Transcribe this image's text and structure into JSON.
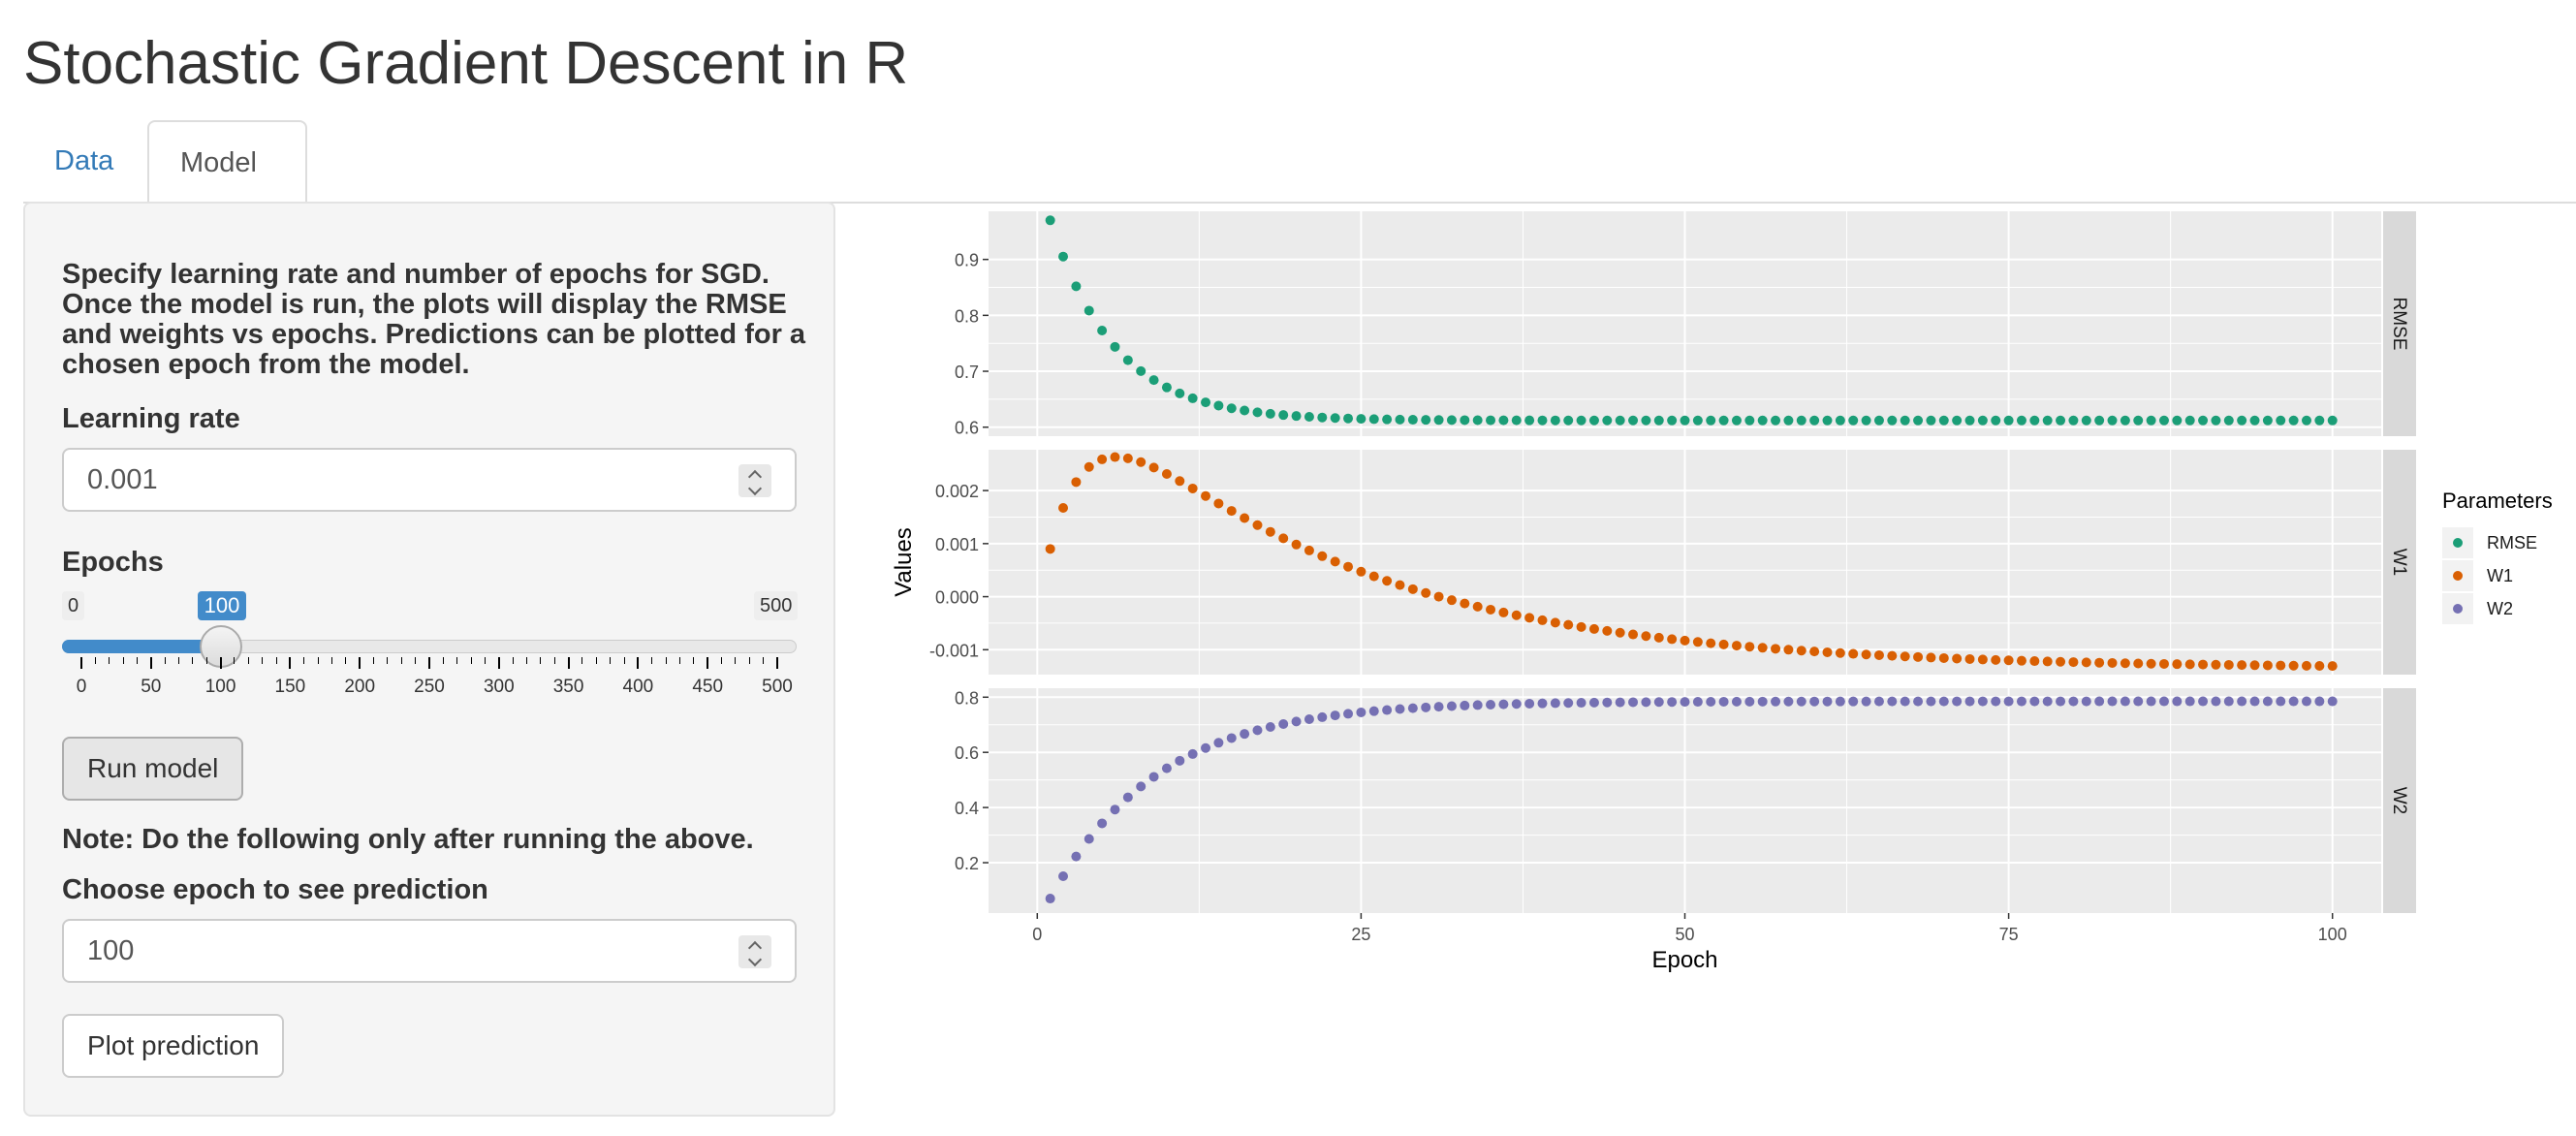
{
  "page": {
    "title": "Stochastic Gradient Descent in R"
  },
  "tabs": [
    {
      "label": "Data",
      "active": false
    },
    {
      "label": "Model",
      "active": true
    }
  ],
  "sidebar": {
    "description": "Specify learning rate and number of epochs for SGD. Once the model is run, the plots will display the RMSE and weights vs epochs. Predictions can be plotted for a chosen epoch from the model.",
    "learning_rate": {
      "label": "Learning rate",
      "value": "0.001"
    },
    "epochs": {
      "label": "Epochs",
      "min_label": "0",
      "max_label": "500",
      "value_label": "100",
      "value": 100,
      "min": 0,
      "max": 500,
      "ticks": [
        "0",
        "50",
        "100",
        "150",
        "200",
        "250",
        "300",
        "350",
        "400",
        "450",
        "500"
      ]
    },
    "run_button": "Run model",
    "note": "Note: Do the following only after running the above.",
    "prediction_epoch": {
      "label": "Choose epoch to see prediction",
      "value": "100"
    },
    "plot_button": "Plot prediction"
  },
  "colors": {
    "accent": "#428bca",
    "link": "#337ab7",
    "panel_bg": "#ebebeb",
    "strip_bg": "#d9d9d9",
    "rmse": "#1b9e77",
    "w1": "#d95f02",
    "w2": "#7570b3"
  },
  "chart_data": {
    "type": "scatter",
    "facets": [
      "RMSE",
      "W1",
      "W2"
    ],
    "xlabel": "Epoch",
    "ylabel": "Values",
    "xlim": [
      0,
      100
    ],
    "x_ticks": [
      "0",
      "25",
      "50",
      "75",
      "100"
    ],
    "legend": {
      "title": "Parameters",
      "placement": "right",
      "entries": [
        "RMSE",
        "W1",
        "W2"
      ]
    },
    "grid": true,
    "panels": [
      {
        "name": "RMSE",
        "ylim": [
          0.6,
          0.97
        ],
        "y_ticks": [
          "0.6",
          "0.7",
          "0.8",
          "0.9"
        ],
        "y_tick_values": [
          0.6,
          0.7,
          0.8,
          0.9
        ],
        "model": {
          "kind": "decay",
          "start": 0.97,
          "end": 0.612,
          "rate": 0.2
        },
        "series": {
          "name": "RMSE",
          "x": [
            1,
            100
          ]
        }
      },
      {
        "name": "W1",
        "ylim": [
          -0.0013,
          0.0026
        ],
        "y_ticks": [
          "0.002",
          "0.001",
          "0.000",
          "-0.001"
        ],
        "y_tick_values": [
          0.002,
          0.001,
          0.0,
          -0.001
        ],
        "model": {
          "kind": "hump",
          "a": 0.0009,
          "b": 0.0038,
          "k1": 0.05,
          "k2": 0.28,
          "end": -0.00135
        },
        "series": {
          "name": "W1",
          "x": [
            1,
            100
          ]
        }
      },
      {
        "name": "W2",
        "ylim": [
          0.05,
          0.8
        ],
        "y_ticks": [
          "0.8",
          "0.6",
          "0.4",
          "0.2"
        ],
        "y_tick_values": [
          0.8,
          0.6,
          0.4,
          0.2
        ],
        "model": {
          "kind": "growth",
          "start": 0.07,
          "end": 0.785,
          "rate": 0.12
        },
        "series": {
          "name": "W2",
          "x": [
            1,
            100
          ]
        }
      }
    ]
  }
}
